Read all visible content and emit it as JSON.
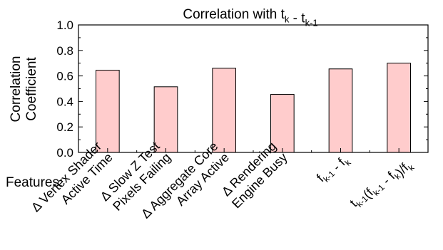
{
  "chart_data": {
    "type": "bar",
    "title": "Correlation with t_k - t_k-1",
    "title_parts": [
      {
        "t": "Correlation with t",
        "sub": false
      },
      {
        "t": "k",
        "sub": true
      },
      {
        "t": " - t",
        "sub": false
      },
      {
        "t": "k-1",
        "sub": true
      }
    ],
    "ylabel_lines": [
      "Correlation",
      "Coefficient"
    ],
    "xlabel": "Features:",
    "ylim": [
      0.0,
      1.0
    ],
    "yticks": [
      "0.0",
      "0.2",
      "0.4",
      "0.6",
      "0.8",
      "1.0"
    ],
    "grid": false,
    "bar_color": "#ffcccc",
    "bar_edge_color": "#000000",
    "categories": [
      {
        "name": "Δ Vertex Shader Active Time",
        "lines": [
          [
            {
              "t": "Δ Vertex Shader",
              "sub": false
            }
          ],
          [
            {
              "t": "Active Time",
              "sub": false
            }
          ]
        ]
      },
      {
        "name": "Δ Slow Z Test Pixels Failing",
        "lines": [
          [
            {
              "t": "Δ Slow Z Test",
              "sub": false
            }
          ],
          [
            {
              "t": "Pixels Failing",
              "sub": false
            }
          ]
        ]
      },
      {
        "name": "Δ Aggregate Core Array Active",
        "lines": [
          [
            {
              "t": "Δ Aggregate Core",
              "sub": false
            }
          ],
          [
            {
              "t": "Array Active",
              "sub": false
            }
          ]
        ]
      },
      {
        "name": "Δ Rendering Engine Busy",
        "lines": [
          [
            {
              "t": "Δ Rendering",
              "sub": false
            }
          ],
          [
            {
              "t": "Engine Busy",
              "sub": false
            }
          ]
        ]
      },
      {
        "name": "f_k-1 - f_k",
        "lines": [
          [
            {
              "t": "f",
              "sub": false
            },
            {
              "t": "k-1",
              "sub": true
            },
            {
              "t": " - f",
              "sub": false
            },
            {
              "t": "k",
              "sub": true
            }
          ]
        ]
      },
      {
        "name": "t_k-1(f_k-1 - f_k)/f_k",
        "lines": [
          [
            {
              "t": "t",
              "sub": false
            },
            {
              "t": "k-1",
              "sub": true
            },
            {
              "t": "(f",
              "sub": false
            },
            {
              "t": "k-1",
              "sub": true
            },
            {
              "t": " - f",
              "sub": false
            },
            {
              "t": "k",
              "sub": true
            },
            {
              "t": ")/f",
              "sub": false
            },
            {
              "t": "k",
              "sub": true
            }
          ]
        ]
      }
    ],
    "values": [
      0.645,
      0.515,
      0.66,
      0.455,
      0.655,
      0.7
    ]
  }
}
